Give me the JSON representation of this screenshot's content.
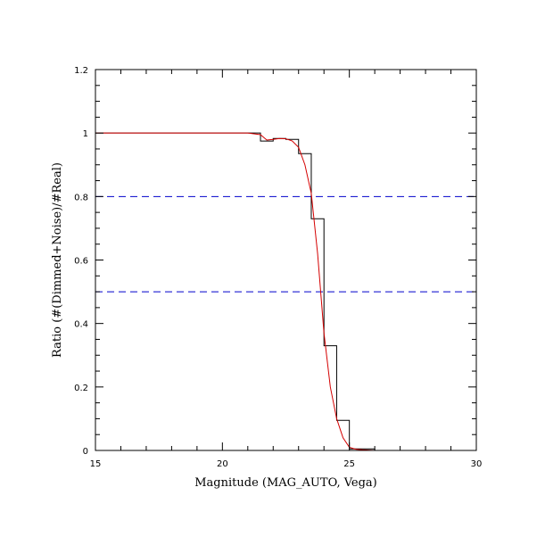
{
  "chart_data": {
    "type": "line",
    "title": "",
    "xlabel": "Magnitude (MAG_AUTO, Vega)",
    "ylabel": "Ratio (#(Dimmed+Noise)/#Real)",
    "xlim": [
      15,
      30
    ],
    "ylim": [
      0,
      1.2
    ],
    "xticks": [
      15,
      20,
      25,
      30
    ],
    "xtick_labels": [
      "15",
      "20",
      "25",
      "30"
    ],
    "yticks": [
      0,
      0.2,
      0.4,
      0.6,
      0.8,
      1,
      1.2
    ],
    "ytick_labels": [
      "0",
      "0.2",
      "0.4",
      "0.6",
      "0.8",
      "1",
      "1.2"
    ],
    "grid": false,
    "series": [
      {
        "style": "step",
        "color": "#000000",
        "bins": [
          {
            "x0": 15.0,
            "x1": 21.5,
            "y": 1.0
          },
          {
            "x0": 21.5,
            "x1": 22.0,
            "y": 0.975
          },
          {
            "x0": 22.0,
            "x1": 22.5,
            "y": 0.983
          },
          {
            "x0": 22.5,
            "x1": 23.0,
            "y": 0.98
          },
          {
            "x0": 23.0,
            "x1": 23.5,
            "y": 0.935
          },
          {
            "x0": 23.5,
            "x1": 24.0,
            "y": 0.73
          },
          {
            "x0": 24.0,
            "x1": 24.5,
            "y": 0.33
          },
          {
            "x0": 24.5,
            "x1": 25.0,
            "y": 0.095
          },
          {
            "x0": 25.0,
            "x1": 26.0,
            "y": 0.005
          },
          {
            "x0": 26.0,
            "x1": 30.0,
            "y": 0.0
          }
        ]
      },
      {
        "style": "line",
        "color": "#d40000",
        "x": [
          15.0,
          21.0,
          21.5,
          21.75,
          22.0,
          22.25,
          22.5,
          22.75,
          23.0,
          23.25,
          23.5,
          23.75,
          24.0,
          24.25,
          24.5,
          24.75,
          25.0,
          25.25,
          25.5,
          26.0,
          30.0
        ],
        "y": [
          1.0,
          1.0,
          0.995,
          0.978,
          0.98,
          0.983,
          0.982,
          0.975,
          0.955,
          0.9,
          0.81,
          0.62,
          0.37,
          0.2,
          0.1,
          0.04,
          0.01,
          0.004,
          0.002,
          0.0,
          0.0
        ]
      }
    ],
    "reference_lines": [
      {
        "y": 0.8,
        "color": "#0000cc",
        "dash": "dashed"
      },
      {
        "y": 0.5,
        "color": "#0000cc",
        "dash": "dashed"
      }
    ]
  }
}
